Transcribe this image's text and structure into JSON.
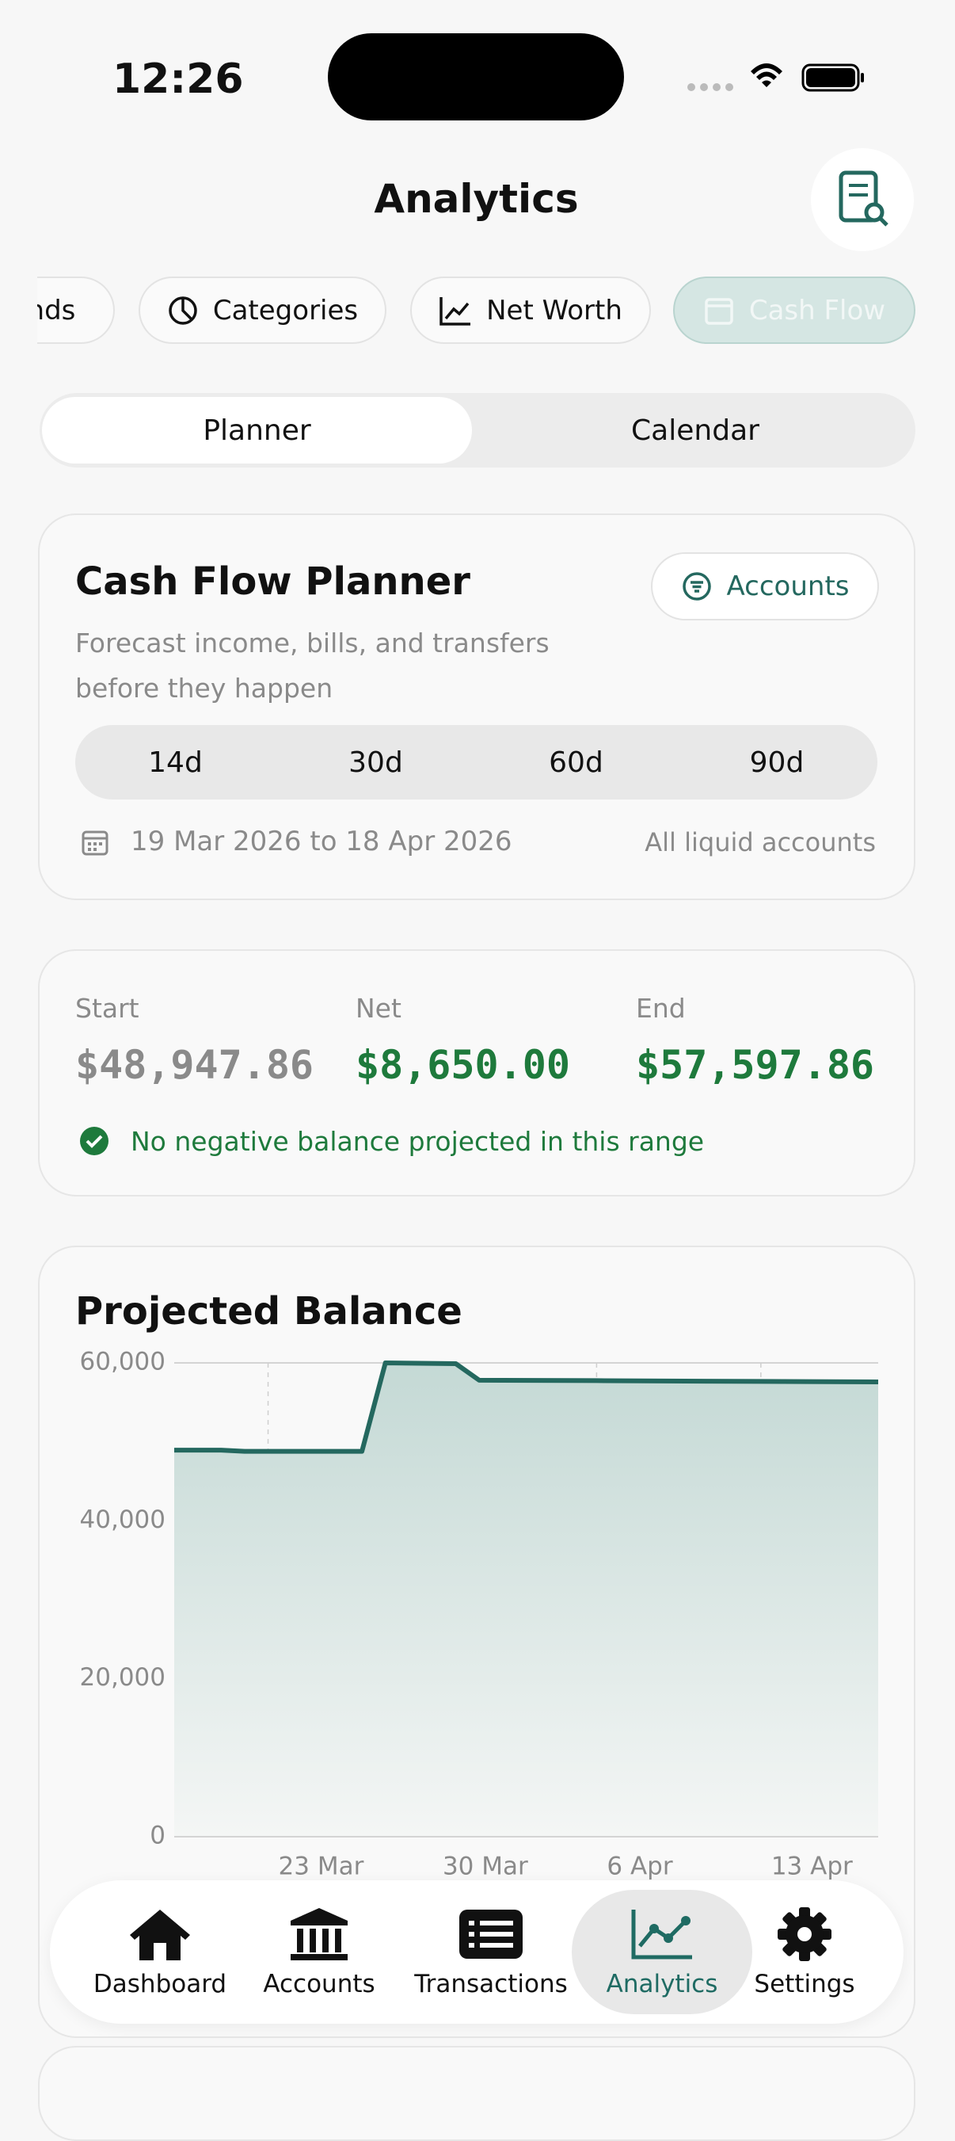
{
  "status_bar": {
    "time": "12:26"
  },
  "header": {
    "title": "Analytics"
  },
  "chips": [
    "Trends",
    "Categories",
    "Net Worth",
    "Cash Flow"
  ],
  "segmented": [
    "Planner",
    "Calendar"
  ],
  "planner": {
    "title": "Cash Flow Planner",
    "button": "Accounts",
    "subtitle": "Forecast income, bills, and transfers before they happen",
    "ranges": [
      "14d",
      "30d",
      "60d",
      "90d"
    ],
    "date_range": "19 Mar 2026 to 18 Apr 2026",
    "scope": "All liquid accounts"
  },
  "summary": {
    "items": [
      {
        "label": "Start",
        "value": "$48,947.86"
      },
      {
        "label": "Net",
        "value": "$8,650.00"
      },
      {
        "label": "End",
        "value": "$57,597.86"
      }
    ],
    "note": "No negative balance projected in this range"
  },
  "chart_data": {
    "type": "line",
    "title": "Projected Balance",
    "x": [
      "19 Mar",
      "21 Mar",
      "22 Mar",
      "27 Mar",
      "28 Mar",
      "31 Mar",
      "1 Apr",
      "6 Apr",
      "13 Apr",
      "18 Apr"
    ],
    "values": [
      48947.86,
      48947.86,
      48800,
      48800,
      60000,
      59900,
      57800,
      57750,
      57650,
      57597.86
    ],
    "color": "#24685f",
    "xlim": [
      "19 Mar",
      "18 Apr"
    ],
    "xticks": [
      "23 Mar",
      "30 Mar",
      "6 Apr",
      "13 Apr"
    ],
    "ylim": [
      0,
      60000
    ],
    "yticks": [
      0,
      {
        "value": 20000,
        "label": "20,000"
      },
      {
        "value": 40000,
        "label": "40,000"
      },
      {
        "value": 60000,
        "label": "60,000"
      }
    ],
    "grid": true
  },
  "tab_bar": [
    "Dashboard",
    "Accounts",
    "Transactions",
    "Analytics",
    "Settings"
  ]
}
